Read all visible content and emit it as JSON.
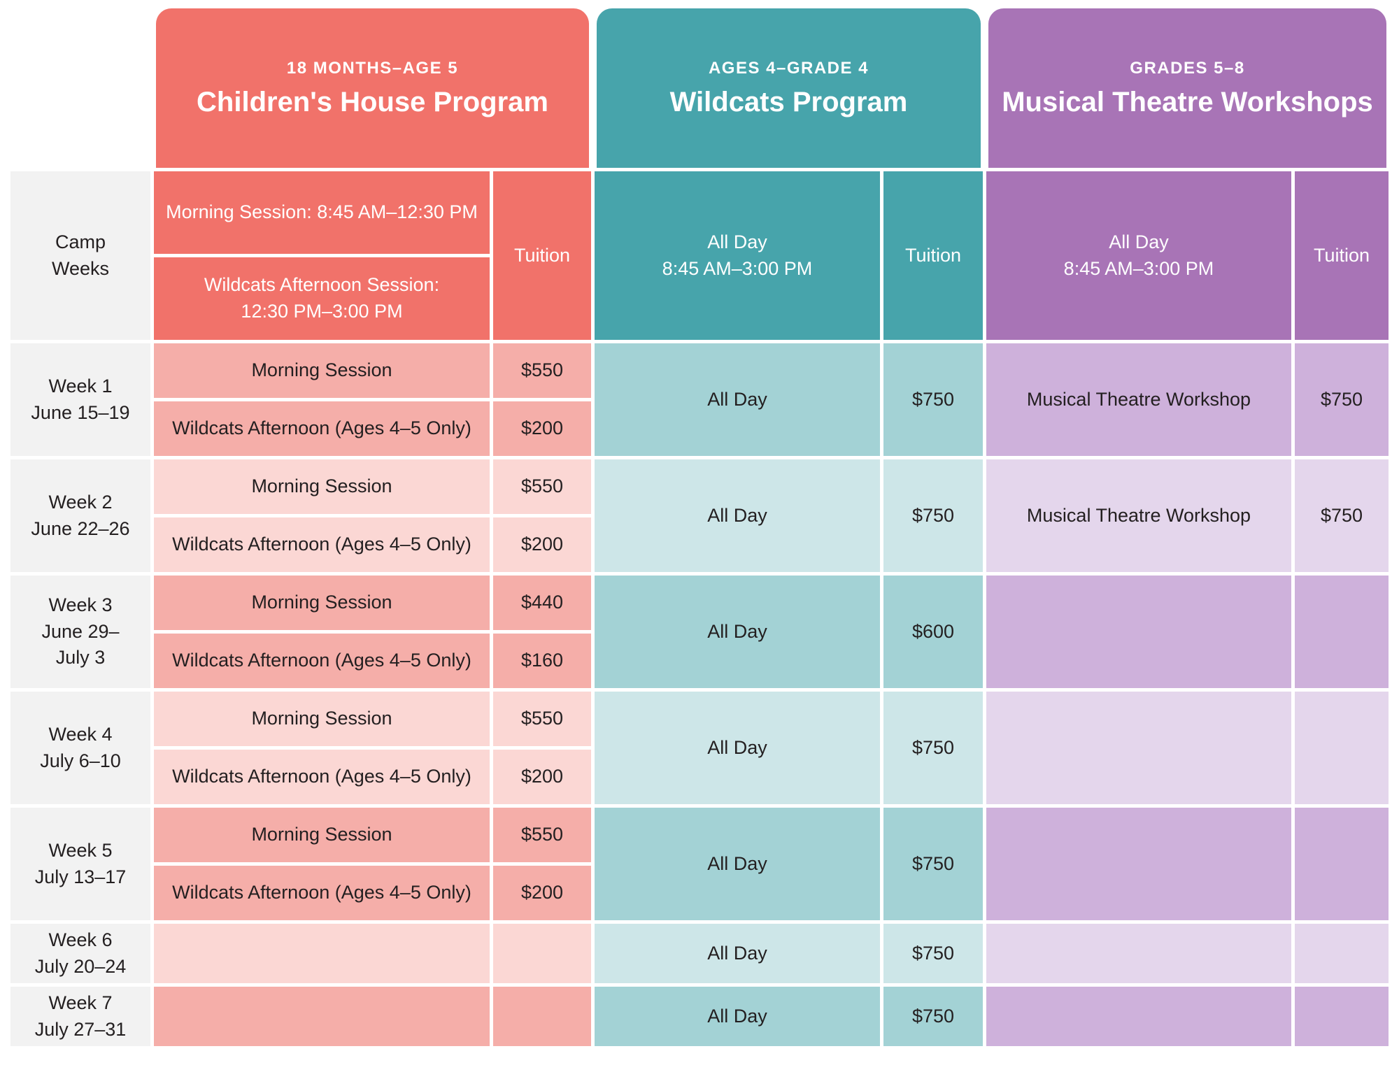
{
  "colors": {
    "program_red": "#F1726A",
    "program_teal": "#47A4AB",
    "program_purple": "#A874B6",
    "row_pink_dark": "#F5AEA9",
    "row_pink_light": "#FBD7D4",
    "row_teal_dark": "#A3D2D5",
    "row_teal_light": "#CDE6E8",
    "row_purple_dark": "#CEB1DB",
    "row_purple_light": "#E4D6EC",
    "week_column_gray": "#F2F2F2",
    "text_dark": "#231F20",
    "text_light": "#FFFFFF"
  },
  "camp_weeks_header": "Camp\nWeeks",
  "programs": [
    {
      "age_range": "18 MONTHS–AGE 5",
      "title": "Children's House Program",
      "subheader_morning": "Morning Session: 8:45 AM–12:30 PM",
      "subheader_afternoon": "Wildcats Afternoon Session:\n12:30 PM–3:00 PM",
      "tuition_label": "Tuition"
    },
    {
      "age_range": "AGES 4–GRADE 4",
      "title": "Wildcats Program",
      "subheader": "All Day\n8:45 AM–3:00 PM",
      "tuition_label": "Tuition"
    },
    {
      "age_range": "GRADES 5–8",
      "title": "Musical Theatre Workshops",
      "subheader": "All Day\n8:45 AM–3:00 PM",
      "tuition_label": "Tuition"
    }
  ],
  "weeks": [
    {
      "label": "Week 1",
      "dates": "June 15–19",
      "childrens_house": {
        "morning_session": "Morning Session",
        "morning_tuition": "$550",
        "afternoon_session": "Wildcats Afternoon (Ages 4–5 Only)",
        "afternoon_tuition": "$200"
      },
      "wildcats": {
        "session": "All Day",
        "tuition": "$750"
      },
      "musical_theatre": {
        "session": "Musical Theatre Workshop",
        "tuition": "$750"
      }
    },
    {
      "label": "Week 2",
      "dates": "June 22–26",
      "childrens_house": {
        "morning_session": "Morning Session",
        "morning_tuition": "$550",
        "afternoon_session": "Wildcats Afternoon (Ages 4–5 Only)",
        "afternoon_tuition": "$200"
      },
      "wildcats": {
        "session": "All Day",
        "tuition": "$750"
      },
      "musical_theatre": {
        "session": "Musical Theatre Workshop",
        "tuition": "$750"
      }
    },
    {
      "label": "Week 3",
      "dates": "June 29–\nJuly 3",
      "childrens_house": {
        "morning_session": "Morning Session",
        "morning_tuition": "$440",
        "afternoon_session": "Wildcats Afternoon (Ages 4–5 Only)",
        "afternoon_tuition": "$160"
      },
      "wildcats": {
        "session": "All Day",
        "tuition": "$600"
      },
      "musical_theatre": {
        "session": "",
        "tuition": ""
      }
    },
    {
      "label": "Week 4",
      "dates": "July 6–10",
      "childrens_house": {
        "morning_session": "Morning Session",
        "morning_tuition": "$550",
        "afternoon_session": "Wildcats Afternoon (Ages 4–5 Only)",
        "afternoon_tuition": "$200"
      },
      "wildcats": {
        "session": "All Day",
        "tuition": "$750"
      },
      "musical_theatre": {
        "session": "",
        "tuition": ""
      }
    },
    {
      "label": "Week 5",
      "dates": "July 13–17",
      "childrens_house": {
        "morning_session": "Morning Session",
        "morning_tuition": "$550",
        "afternoon_session": "Wildcats Afternoon (Ages 4–5 Only)",
        "afternoon_tuition": "$200"
      },
      "wildcats": {
        "session": "All Day",
        "tuition": "$750"
      },
      "musical_theatre": {
        "session": "",
        "tuition": ""
      }
    },
    {
      "label": "Week 6",
      "dates": "July 20–24",
      "childrens_house": {
        "session": "",
        "tuition": ""
      },
      "wildcats": {
        "session": "All Day",
        "tuition": "$750"
      },
      "musical_theatre": {
        "session": "",
        "tuition": ""
      }
    },
    {
      "label": "Week 7",
      "dates": "July 27–31",
      "childrens_house": {
        "session": "",
        "tuition": ""
      },
      "wildcats": {
        "session": "All Day",
        "tuition": "$750"
      },
      "musical_theatre": {
        "session": "",
        "tuition": ""
      }
    }
  ]
}
